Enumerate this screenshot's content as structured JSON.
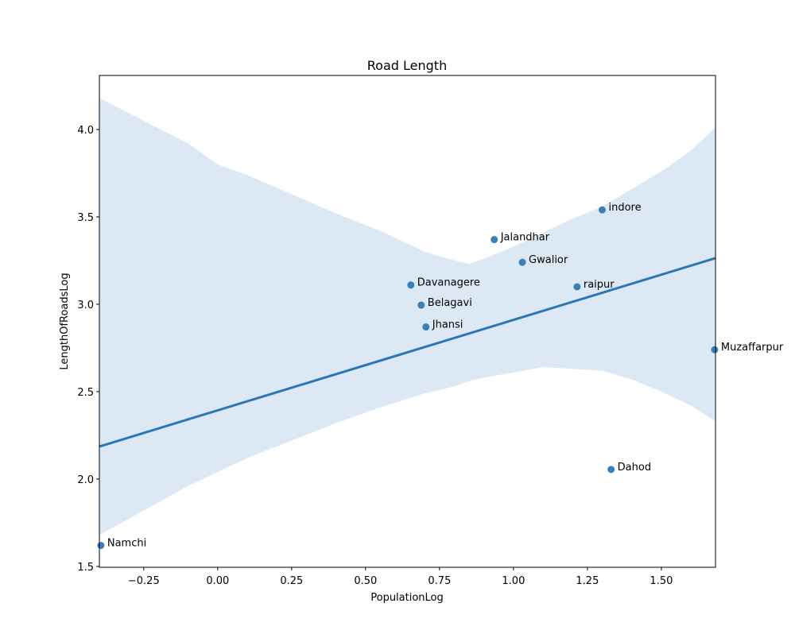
{
  "chart_data": {
    "type": "scatter",
    "title": "Road Length",
    "xlabel": "PopulationLog",
    "ylabel": "LengthOfRoadsLog",
    "xlim": [
      -0.4,
      1.683
    ],
    "ylim": [
      1.495,
      4.309
    ],
    "xticks": [
      -0.25,
      0.0,
      0.25,
      0.5,
      0.75,
      1.0,
      1.25,
      1.5
    ],
    "xtick_labels": [
      "−0.25",
      "0.00",
      "0.25",
      "0.50",
      "0.75",
      "1.00",
      "1.25",
      "1.50"
    ],
    "yticks": [
      1.5,
      2.0,
      2.5,
      3.0,
      3.5,
      4.0
    ],
    "ytick_labels": [
      "1.5",
      "2.0",
      "2.5",
      "3.0",
      "3.5",
      "4.0"
    ],
    "grid": false,
    "points": [
      {
        "label": "Namchi",
        "x": -0.395,
        "y": 1.62
      },
      {
        "label": "Davanagere",
        "x": 0.653,
        "y": 3.11
      },
      {
        "label": "Belagavi",
        "x": 0.688,
        "y": 2.995
      },
      {
        "label": "Jhansi",
        "x": 0.704,
        "y": 2.87
      },
      {
        "label": "Jalandhar",
        "x": 0.935,
        "y": 3.37
      },
      {
        "label": "Gwalior",
        "x": 1.03,
        "y": 3.24
      },
      {
        "label": "raipur",
        "x": 1.215,
        "y": 3.1
      },
      {
        "label": "indore",
        "x": 1.3,
        "y": 3.54
      },
      {
        "label": "Dahod",
        "x": 1.33,
        "y": 2.055
      },
      {
        "label": "Muzaffarpur",
        "x": 1.68,
        "y": 2.74
      }
    ],
    "regression": {
      "x": [
        -0.4,
        1.683
      ],
      "y": [
        2.186,
        3.264
      ]
    },
    "confidence_band": {
      "x": [
        -0.4,
        -0.25,
        -0.1,
        0.0,
        0.1,
        0.25,
        0.4,
        0.55,
        0.7,
        0.8,
        0.85,
        0.9,
        1.0,
        1.1,
        1.2,
        1.3,
        1.4,
        1.5,
        1.6,
        1.683
      ],
      "upper": [
        4.18,
        4.05,
        3.92,
        3.8,
        3.74,
        3.63,
        3.52,
        3.42,
        3.3,
        3.25,
        3.23,
        3.26,
        3.33,
        3.41,
        3.49,
        3.56,
        3.66,
        3.76,
        3.88,
        4.01
      ],
      "lower": [
        1.68,
        1.82,
        1.96,
        2.04,
        2.12,
        2.22,
        2.32,
        2.41,
        2.49,
        2.53,
        2.56,
        2.58,
        2.61,
        2.64,
        2.63,
        2.62,
        2.57,
        2.5,
        2.42,
        2.33
      ]
    },
    "colors": {
      "point": "#3b7fb8",
      "line": "#2a77b4",
      "band": "#dce8f3"
    }
  }
}
